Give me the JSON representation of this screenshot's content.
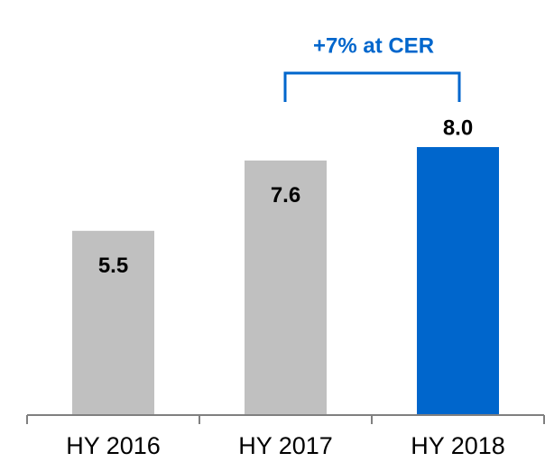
{
  "chart_data": {
    "type": "bar",
    "categories": [
      "HY 2016",
      "HY 2017",
      "HY 2018"
    ],
    "values": [
      5.5,
      7.6,
      8.0
    ],
    "value_labels": [
      "5.5",
      "7.6",
      "8.0"
    ],
    "colors": [
      "#c0c0c0",
      "#c0c0c0",
      "#0066cc"
    ],
    "annotation": "+7% at CER"
  }
}
